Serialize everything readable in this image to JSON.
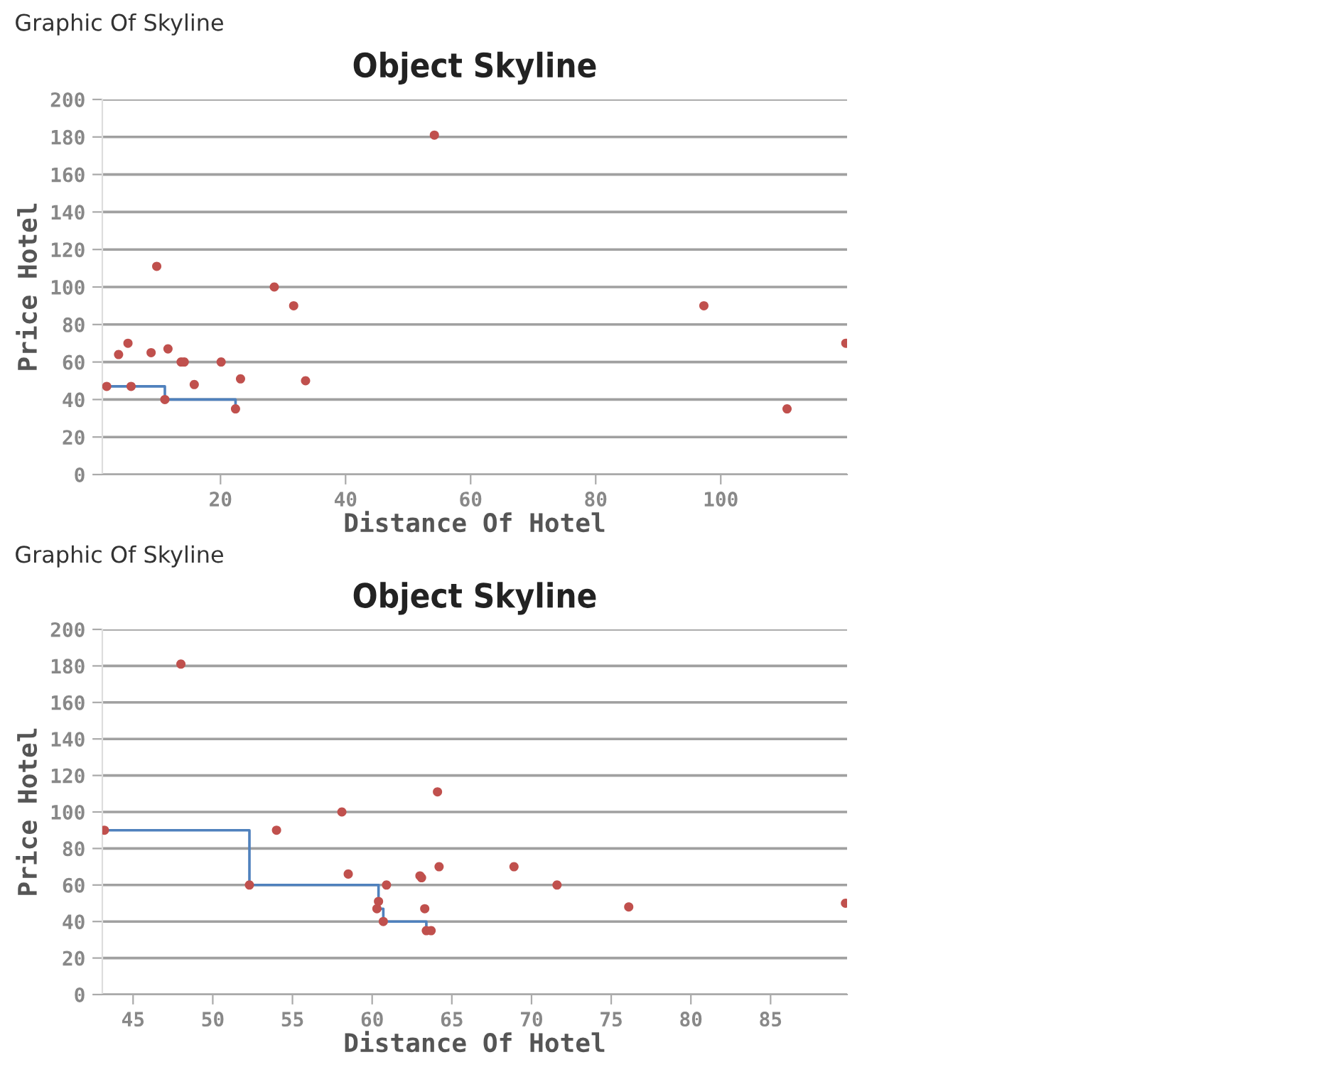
{
  "chart_data": [
    {
      "type": "scatter",
      "title": "Object Skyline",
      "xlabel": "Distance Of Hotel",
      "ylabel": "Price Hotel",
      "annotations": [
        "Graphic Of Skyline"
      ],
      "xlim": [
        1.1,
        120.2
      ],
      "xticks": [
        20,
        40,
        60,
        80,
        100
      ],
      "ylim": [
        0,
        200
      ],
      "yticks": [
        0,
        20,
        40,
        60,
        80,
        100,
        120,
        140,
        160,
        180,
        200
      ],
      "grid": "y",
      "series": [
        {
          "marker": "circle",
          "color": "#c0504d",
          "x": [
            1.8,
            3.7,
            5.2,
            5.7,
            8.9,
            9.8,
            11.1,
            11.6,
            13.7,
            14.2,
            15.8,
            20.1,
            23.2,
            22.4,
            28.6,
            31.7,
            33.6,
            54.2,
            97.3,
            110.6,
            120
          ],
          "values": [
            47,
            64,
            70,
            47,
            65,
            111,
            40,
            67,
            60,
            60,
            48,
            60,
            51,
            35,
            100,
            90,
            50,
            181,
            90,
            35,
            70
          ]
        },
        {
          "type": "step",
          "color": "#4f81bd",
          "x": [
            1.8,
            11.1,
            22.4
          ],
          "values": [
            47,
            40,
            35
          ]
        }
      ]
    },
    {
      "type": "scatter",
      "title": "Object Skyline",
      "xlabel": "Distance Of Hotel",
      "ylabel": "Price Hotel",
      "annotations": [
        "Graphic Of Skyline"
      ],
      "xlim": [
        43.07,
        89.8
      ],
      "xticks": [
        45,
        50,
        55,
        60,
        65,
        70,
        75,
        80,
        85
      ],
      "ylim": [
        0,
        200
      ],
      "yticks": [
        0,
        20,
        40,
        60,
        80,
        100,
        120,
        140,
        160,
        180,
        200
      ],
      "grid": "y",
      "series": [
        {
          "marker": "circle",
          "color": "#c0504d",
          "x": [
            43.2,
            48.0,
            52.3,
            54.0,
            58.1,
            58.5,
            60.9,
            60.4,
            60.3,
            60.7,
            63.0,
            63.1,
            63.3,
            63.4,
            63.7,
            64.1,
            64.2,
            68.9,
            71.6,
            76.1,
            89.7
          ],
          "values": [
            90,
            181,
            60,
            90,
            100,
            66,
            60,
            51,
            47,
            40,
            65,
            64,
            47,
            35,
            35,
            111,
            70,
            70,
            60,
            48,
            50
          ]
        },
        {
          "type": "step",
          "color": "#4f81bd",
          "x": [
            43.2,
            52.3,
            60.4,
            60.7,
            63.4
          ],
          "values": [
            90,
            60,
            47,
            40,
            35
          ]
        }
      ]
    }
  ]
}
